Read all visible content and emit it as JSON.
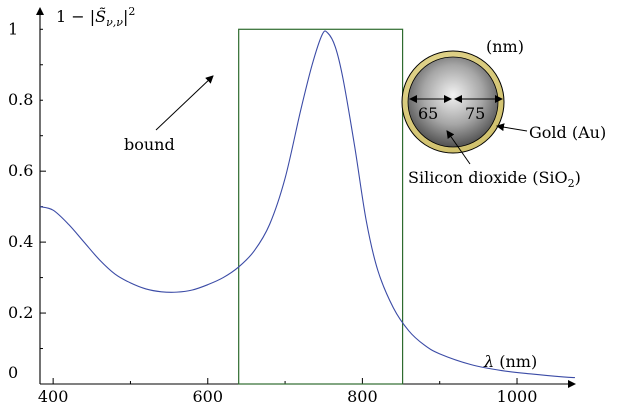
{
  "chart_data": {
    "type": "line",
    "ylabel": "1 − |S̃ν,ν|²",
    "xlabel": "λ (nm)",
    "xlim": [
      383,
      1075
    ],
    "ylim": [
      0,
      1.06
    ],
    "x_ticks": [
      400,
      600,
      800,
      1000
    ],
    "y_ticks": [
      0,
      0.2,
      0.4,
      0.6,
      0.8,
      1
    ],
    "y_tick_labels": [
      "0",
      "0.2",
      "0.4",
      "0.6",
      "0.8",
      "1"
    ],
    "x_tick_labels": [
      "400",
      "600",
      "800",
      "1000"
    ],
    "grid": false,
    "series": [
      {
        "color": "#3b4ba6",
        "x": [
          383,
          400,
          420,
          440,
          460,
          480,
          500,
          520,
          540,
          560,
          580,
          600,
          620,
          640,
          660,
          680,
          700,
          720,
          735,
          748,
          755,
          765,
          775,
          790,
          805,
          820,
          840,
          860,
          880,
          900,
          940,
          980,
          1020,
          1060,
          1075
        ],
        "y": [
          0.5,
          0.49,
          0.45,
          0.4,
          0.35,
          0.31,
          0.285,
          0.268,
          0.26,
          0.259,
          0.265,
          0.28,
          0.3,
          0.33,
          0.375,
          0.45,
          0.58,
          0.77,
          0.9,
          0.985,
          0.99,
          0.95,
          0.86,
          0.67,
          0.46,
          0.32,
          0.215,
          0.15,
          0.11,
          0.085,
          0.055,
          0.038,
          0.028,
          0.02,
          0.018
        ]
      }
    ],
    "bound_box": {
      "x_start": 640,
      "x_end": 852,
      "y_top": 1,
      "color": "#2e6b2e"
    },
    "annotations": {
      "bound_label": "bound",
      "unit_label": "(nm)",
      "inner_dimension": "65",
      "shell_dimension": "75",
      "gold_label": "Gold (Au)",
      "silica_label": "Silicon dioxide (SiO",
      "silica_subscript": "2",
      "silica_close": ")"
    }
  }
}
